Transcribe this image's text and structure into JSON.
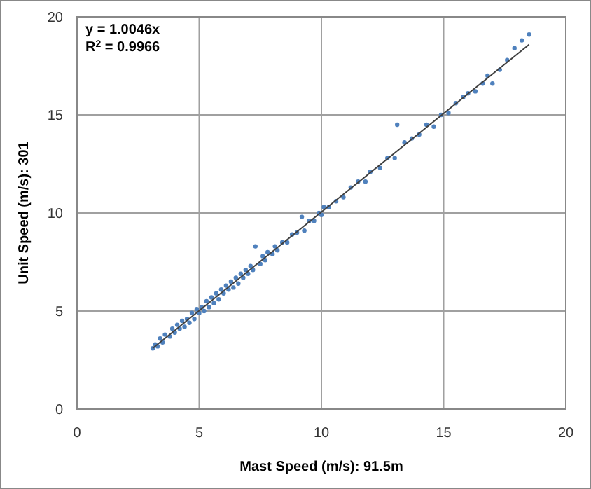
{
  "chart_data": {
    "type": "scatter",
    "xlabel": "Mast Speed (m/s): 91.5m",
    "ylabel": "Unit Speed (m/s): 301",
    "annotations": [
      "y = 1.0046x",
      "R$^{2}$ = 0.9966"
    ],
    "xlim": [
      0,
      20
    ],
    "ylim": [
      0,
      20
    ],
    "xticks": [
      0,
      5,
      10,
      15,
      20
    ],
    "yticks": [
      0,
      5,
      10,
      15,
      20
    ],
    "grid": true,
    "marker": "circle",
    "series": [
      {
        "color": "#4f81bd",
        "x": [
          3.1,
          3.2,
          3.3,
          3.4,
          3.5,
          3.6,
          3.8,
          3.9,
          4.0,
          4.1,
          4.2,
          4.3,
          4.4,
          4.5,
          4.6,
          4.7,
          4.8,
          4.9,
          5.0,
          5.1,
          5.2,
          5.3,
          5.4,
          5.5,
          5.6,
          5.7,
          5.8,
          5.9,
          6.0,
          6.1,
          6.2,
          6.3,
          6.4,
          6.5,
          6.6,
          6.7,
          6.8,
          6.9,
          7.0,
          7.1,
          7.2,
          7.3,
          7.5,
          7.6,
          7.7,
          7.8,
          8.0,
          8.1,
          8.2,
          8.4,
          8.6,
          8.8,
          9.0,
          9.2,
          9.3,
          9.5,
          9.7,
          9.9,
          10.0,
          10.1,
          10.3,
          10.6,
          10.9,
          11.2,
          11.5,
          11.8,
          12.0,
          12.4,
          12.7,
          13.0,
          13.1,
          13.4,
          13.7,
          14.0,
          14.3,
          14.6,
          14.9,
          15.2,
          15.5,
          15.8,
          16.0,
          16.3,
          16.6,
          16.8,
          17.0,
          17.3,
          17.6,
          17.9,
          18.2,
          18.5
        ],
        "values": [
          3.1,
          3.3,
          3.2,
          3.6,
          3.4,
          3.8,
          3.7,
          4.1,
          3.9,
          4.3,
          4.1,
          4.5,
          4.2,
          4.6,
          4.4,
          4.9,
          4.6,
          5.1,
          4.9,
          5.2,
          5.0,
          5.5,
          5.2,
          5.7,
          5.4,
          5.9,
          5.6,
          6.1,
          5.9,
          6.3,
          6.1,
          6.5,
          6.2,
          6.7,
          6.4,
          6.9,
          6.7,
          7.1,
          6.9,
          7.3,
          7.1,
          8.3,
          7.4,
          7.8,
          7.6,
          8.0,
          7.9,
          8.3,
          8.1,
          8.5,
          8.5,
          8.9,
          9.0,
          9.8,
          9.1,
          9.6,
          9.6,
          10.0,
          9.9,
          10.3,
          10.3,
          10.6,
          10.8,
          11.3,
          11.6,
          11.6,
          12.1,
          12.3,
          12.8,
          12.8,
          14.5,
          13.6,
          13.8,
          14.0,
          14.5,
          14.4,
          15.0,
          15.1,
          15.6,
          15.9,
          16.1,
          16.2,
          16.6,
          17.0,
          16.6,
          17.3,
          17.8,
          18.4,
          18.8,
          19.1
        ]
      },
      {
        "color": "#404040",
        "type": "line",
        "marker": "none",
        "x": [
          3.1,
          18.5
        ],
        "values": [
          3.11,
          18.59
        ]
      }
    ]
  }
}
